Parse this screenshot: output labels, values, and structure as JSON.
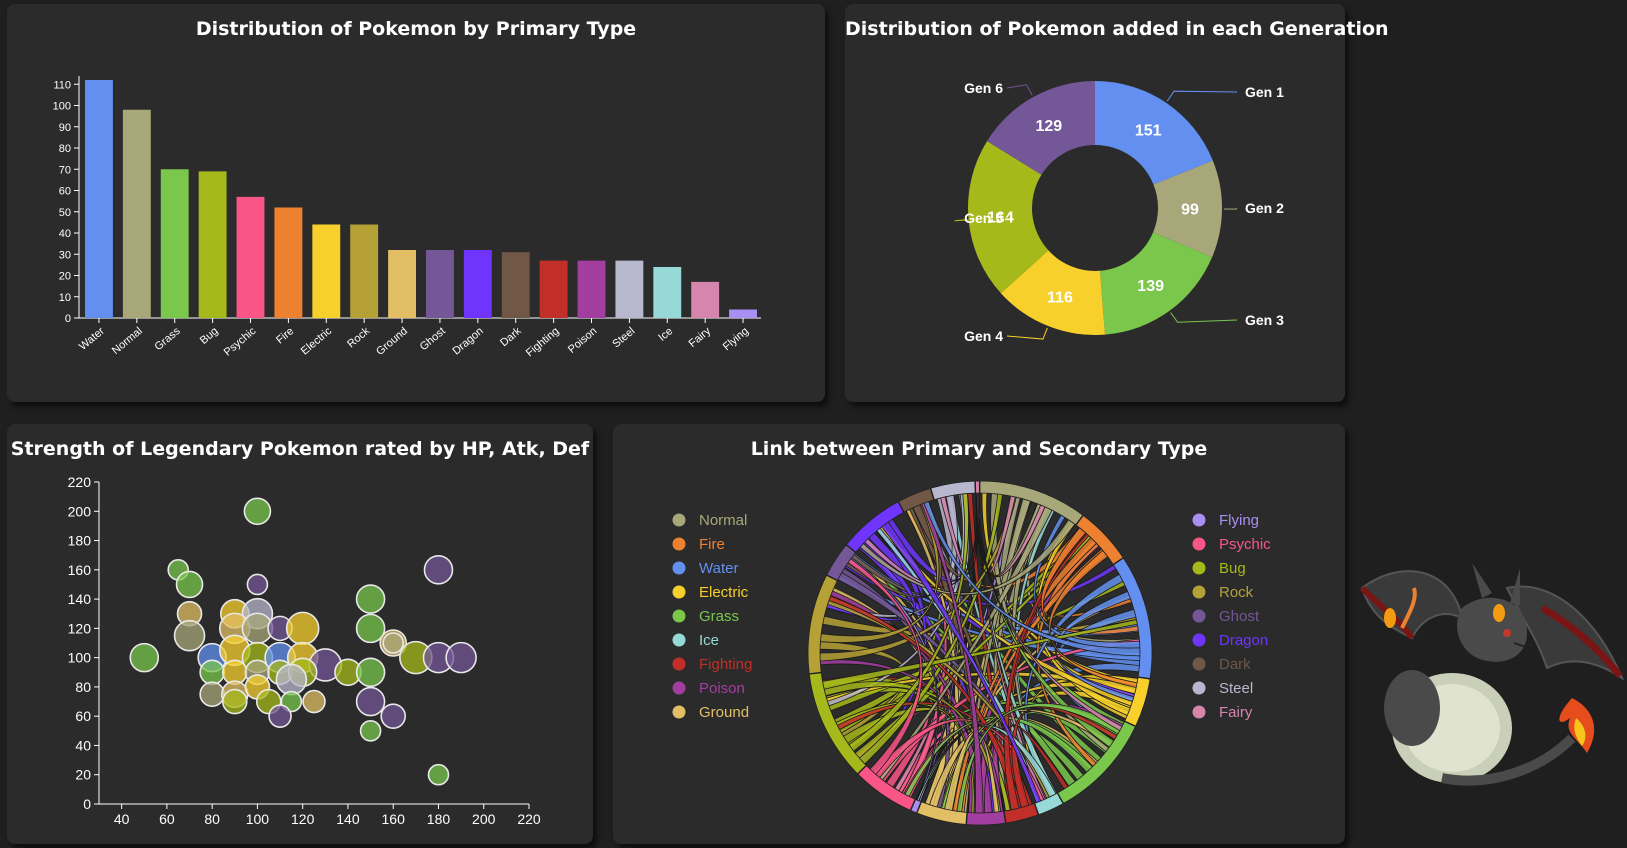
{
  "chart_data": [
    {
      "type": "bar",
      "title": "Distribution of Pokemon by Primary Type",
      "categories": [
        "Water",
        "Normal",
        "Grass",
        "Bug",
        "Psychic",
        "Fire",
        "Electric",
        "Rock",
        "Ground",
        "Ghost",
        "Dragon",
        "Dark",
        "Fighting",
        "Poison",
        "Steel",
        "Ice",
        "Fairy",
        "Flying"
      ],
      "values": [
        112,
        98,
        70,
        69,
        57,
        52,
        44,
        44,
        32,
        32,
        32,
        31,
        27,
        27,
        27,
        24,
        17,
        4
      ],
      "colors": [
        "#6390f0",
        "#a8a77a",
        "#7ac74c",
        "#a6b91a",
        "#f95587",
        "#ee8130",
        "#f7d02c",
        "#b6a136",
        "#e2bf65",
        "#735797",
        "#6f35fc",
        "#705746",
        "#c22e28",
        "#a33ea1",
        "#b7b7ce",
        "#96d9d6",
        "#d685ad",
        "#a98ff3"
      ],
      "yticks": [
        0,
        10,
        20,
        30,
        40,
        50,
        60,
        70,
        80,
        90,
        100,
        110
      ],
      "ylim": [
        0,
        115
      ],
      "grid": false
    },
    {
      "type": "pie",
      "title": "Distribution of Pokemon added in each Generation",
      "labels": [
        "Gen 1",
        "Gen 2",
        "Gen 3",
        "Gen 4",
        "Gen 5",
        "Gen 6"
      ],
      "values": [
        151,
        99,
        139,
        116,
        164,
        129
      ],
      "colors": [
        "#6390f0",
        "#a8a77a",
        "#7ac74c",
        "#f7d02c",
        "#a6b91a",
        "#735797"
      ]
    },
    {
      "type": "scatter",
      "title": "Strength of Legendary Pokemon rated by HP, Atk, Def",
      "xticks": [
        40,
        60,
        80,
        100,
        120,
        140,
        160,
        180,
        200,
        220
      ],
      "yticks": [
        0,
        20,
        40,
        60,
        80,
        100,
        120,
        140,
        160,
        180,
        200,
        220
      ],
      "xlim": [
        30,
        220
      ],
      "ylim": [
        0,
        220
      ],
      "points": [
        {
          "x": 50,
          "y": 100,
          "r": 14,
          "c": "#7ac74c"
        },
        {
          "x": 100,
          "y": 200,
          "r": 13,
          "c": "#7ac74c"
        },
        {
          "x": 65,
          "y": 160,
          "r": 10,
          "c": "#7ac74c"
        },
        {
          "x": 70,
          "y": 150,
          "r": 13,
          "c": "#7ac74c"
        },
        {
          "x": 100,
          "y": 150,
          "r": 10,
          "c": "#735797"
        },
        {
          "x": 70,
          "y": 130,
          "r": 12,
          "c": "#e2bf65"
        },
        {
          "x": 90,
          "y": 130,
          "r": 14,
          "c": "#f7d02c"
        },
        {
          "x": 100,
          "y": 130,
          "r": 15,
          "c": "#b7b7ce"
        },
        {
          "x": 70,
          "y": 115,
          "r": 15,
          "c": "#a8a77a"
        },
        {
          "x": 90,
          "y": 120,
          "r": 15,
          "c": "#e2bf65"
        },
        {
          "x": 100,
          "y": 120,
          "r": 15,
          "c": "#a8a77a"
        },
        {
          "x": 110,
          "y": 120,
          "r": 12,
          "c": "#735797"
        },
        {
          "x": 120,
          "y": 120,
          "r": 16,
          "c": "#f7d02c"
        },
        {
          "x": 80,
          "y": 100,
          "r": 14,
          "c": "#6390f0"
        },
        {
          "x": 90,
          "y": 105,
          "r": 15,
          "c": "#f7d02c"
        },
        {
          "x": 100,
          "y": 100,
          "r": 15,
          "c": "#a6b91a"
        },
        {
          "x": 110,
          "y": 100,
          "r": 15,
          "c": "#6390f0"
        },
        {
          "x": 120,
          "y": 100,
          "r": 15,
          "c": "#f7d02c"
        },
        {
          "x": 130,
          "y": 95,
          "r": 16,
          "c": "#735797"
        },
        {
          "x": 80,
          "y": 90,
          "r": 12,
          "c": "#7ac74c"
        },
        {
          "x": 90,
          "y": 90,
          "r": 12,
          "c": "#f7d02c"
        },
        {
          "x": 100,
          "y": 90,
          "r": 12,
          "c": "#a8a77a"
        },
        {
          "x": 110,
          "y": 90,
          "r": 12,
          "c": "#a6b91a"
        },
        {
          "x": 120,
          "y": 90,
          "r": 14,
          "c": "#a6b91a"
        },
        {
          "x": 115,
          "y": 85,
          "r": 15,
          "c": "#b7b7ce"
        },
        {
          "x": 80,
          "y": 75,
          "r": 12,
          "c": "#a8a77a"
        },
        {
          "x": 90,
          "y": 75,
          "r": 13,
          "c": "#e2bf65"
        },
        {
          "x": 100,
          "y": 80,
          "r": 12,
          "c": "#f7d02c"
        },
        {
          "x": 105,
          "y": 70,
          "r": 12,
          "c": "#a6b91a"
        },
        {
          "x": 90,
          "y": 70,
          "r": 12,
          "c": "#a6b91a"
        },
        {
          "x": 115,
          "y": 70,
          "r": 10,
          "c": "#7ac74c"
        },
        {
          "x": 125,
          "y": 70,
          "r": 11,
          "c": "#e2bf65"
        },
        {
          "x": 110,
          "y": 60,
          "r": 11,
          "c": "#735797"
        },
        {
          "x": 140,
          "y": 90,
          "r": 13,
          "c": "#a6b91a"
        },
        {
          "x": 150,
          "y": 90,
          "r": 14,
          "c": "#7ac74c"
        },
        {
          "x": 150,
          "y": 140,
          "r": 14,
          "c": "#7ac74c"
        },
        {
          "x": 150,
          "y": 120,
          "r": 14,
          "c": "#7ac74c"
        },
        {
          "x": 160,
          "y": 110,
          "r": 13,
          "c": "#e2bf65"
        },
        {
          "x": 160,
          "y": 110,
          "r": 10,
          "c": "#a8a77a"
        },
        {
          "x": 170,
          "y": 100,
          "r": 16,
          "c": "#a6b91a"
        },
        {
          "x": 180,
          "y": 100,
          "r": 15,
          "c": "#735797"
        },
        {
          "x": 190,
          "y": 100,
          "r": 15,
          "c": "#735797"
        },
        {
          "x": 180,
          "y": 160,
          "r": 14,
          "c": "#735797"
        },
        {
          "x": 150,
          "y": 70,
          "r": 14,
          "c": "#735797"
        },
        {
          "x": 160,
          "y": 60,
          "r": 12,
          "c": "#735797"
        },
        {
          "x": 150,
          "y": 50,
          "r": 10,
          "c": "#7ac74c"
        },
        {
          "x": 180,
          "y": 20,
          "r": 10,
          "c": "#7ac74c"
        }
      ]
    },
    {
      "type": "chord",
      "title": "Link between Primary and Secondary Type",
      "groups": [
        {
          "name": "Normal",
          "value": 98,
          "color": "#a8a77a"
        },
        {
          "name": "Fire",
          "value": 52,
          "color": "#ee8130"
        },
        {
          "name": "Water",
          "value": 112,
          "color": "#6390f0"
        },
        {
          "name": "Electric",
          "value": 44,
          "color": "#f7d02c"
        },
        {
          "name": "Grass",
          "value": 95,
          "color": "#7ac74c"
        },
        {
          "name": "Ice",
          "value": 24,
          "color": "#96d9d6"
        },
        {
          "name": "Fighting",
          "value": 30,
          "color": "#c22e28"
        },
        {
          "name": "Poison",
          "value": 35,
          "color": "#a33ea1"
        },
        {
          "name": "Ground",
          "value": 45,
          "color": "#e2bf65"
        },
        {
          "name": "Flying",
          "value": 6,
          "color": "#a98ff3"
        },
        {
          "name": "Psychic",
          "value": 57,
          "color": "#f95587"
        },
        {
          "name": "Bug",
          "value": 100,
          "color": "#a6b91a"
        },
        {
          "name": "Rock",
          "value": 90,
          "color": "#b6a136"
        },
        {
          "name": "Ghost",
          "value": 32,
          "color": "#735797"
        },
        {
          "name": "Dragon",
          "value": 60,
          "color": "#6f35fc"
        },
        {
          "name": "Dark",
          "value": 31,
          "color": "#705746"
        },
        {
          "name": "Steel",
          "value": 40,
          "color": "#b7b7ce"
        },
        {
          "name": "Fairy",
          "value": 4,
          "color": "#d685ad"
        }
      ]
    }
  ],
  "legend_left": [
    "Normal",
    "Fire",
    "Water",
    "Electric",
    "Grass",
    "Ice",
    "Fighting",
    "Poison",
    "Ground"
  ],
  "legend_right": [
    "Flying",
    "Psychic",
    "Bug",
    "Rock",
    "Ghost",
    "Dragon",
    "Dark",
    "Steel",
    "Fairy"
  ]
}
